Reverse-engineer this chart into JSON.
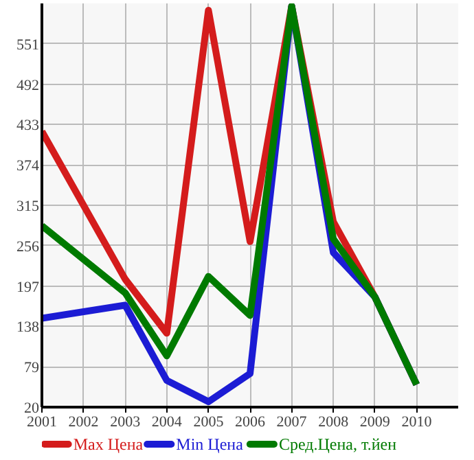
{
  "chart_data": {
    "type": "line",
    "x": [
      2001,
      2003,
      2004,
      2005,
      2006,
      2007,
      2008,
      2009,
      2010
    ],
    "series": [
      {
        "name": "Max Цена",
        "color": "#d41c1c",
        "values": [
          423,
          207,
          128,
          600,
          262,
          606,
          291,
          181,
          53
        ]
      },
      {
        "name": "Min Цена",
        "color": "#1c1cd4",
        "values": [
          150,
          169,
          59,
          28,
          69,
          606,
          246,
          181,
          53
        ]
      },
      {
        "name": "Сред.Цена, т.йен",
        "color": "#007a00",
        "values": [
          285,
          187,
          95,
          211,
          154,
          606,
          266,
          181,
          53
        ]
      }
    ],
    "xlim": [
      2001,
      2011
    ],
    "xticks": [
      2001,
      2002,
      2003,
      2004,
      2005,
      2006,
      2007,
      2008,
      2009,
      2010
    ],
    "ylim": [
      20,
      610
    ],
    "yticks": [
      20,
      79,
      138,
      197,
      256,
      315,
      374,
      433,
      492,
      551
    ],
    "grid": true,
    "legend": "bottom",
    "marker": "none",
    "line_style": "solid"
  }
}
